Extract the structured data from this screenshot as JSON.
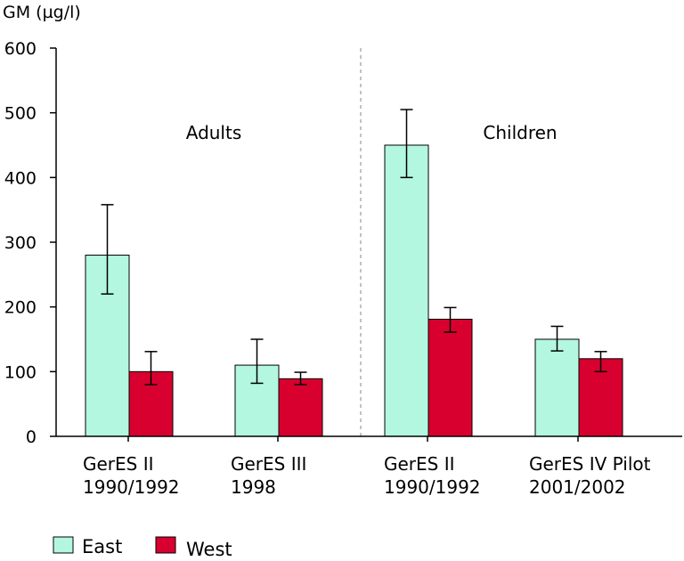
{
  "chart_data": {
    "type": "bar",
    "ylabel": "GM (µg/l)",
    "ylim": [
      0,
      600
    ],
    "yticks": [
      0,
      100,
      200,
      300,
      400,
      500,
      600
    ],
    "grid": false,
    "legend": "bottom-left",
    "categories": [
      {
        "line1": "GerES II",
        "line2": "1990/1992"
      },
      {
        "line1": "GerES III",
        "line2": "1998"
      },
      {
        "line1": "GerES II",
        "line2": "1990/1992"
      },
      {
        "line1": "GerES IV Pilot",
        "line2": "2001/2002"
      }
    ],
    "groups": [
      {
        "label": "Adults",
        "categories": [
          0,
          1
        ]
      },
      {
        "label": "Children",
        "categories": [
          2,
          3
        ]
      }
    ],
    "series": [
      {
        "name": "East",
        "color": "#b3f7e1",
        "values": [
          280,
          110,
          450,
          150
        ],
        "err_low": [
          220,
          82,
          400,
          132
        ],
        "err_high": [
          358,
          150,
          505,
          170
        ]
      },
      {
        "name": "West",
        "color": "#d8002f",
        "values": [
          100,
          89,
          181,
          120
        ],
        "err_low": [
          80,
          80,
          161,
          100
        ],
        "err_high": [
          131,
          99,
          199,
          131
        ]
      }
    ]
  }
}
